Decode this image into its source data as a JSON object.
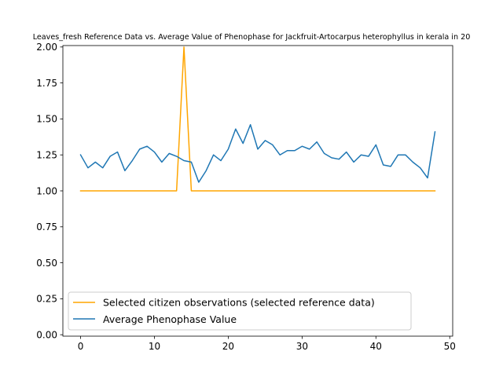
{
  "chart_data": {
    "type": "line",
    "title": "Leaves_fresh Reference Data vs. Average Value of Phenophase for Jackfruit-Artocarpus heterophyllus in kerala in 20",
    "xlabel": "",
    "ylabel": "",
    "xlim": [
      -2.4,
      50.4
    ],
    "ylim": [
      -0.01,
      2.01
    ],
    "xticks": [
      0,
      10,
      20,
      30,
      40,
      50
    ],
    "yticks": [
      0.0,
      0.25,
      0.5,
      0.75,
      1.0,
      1.25,
      1.5,
      1.75,
      2.0
    ],
    "grid": false,
    "legend_position": "lower-left",
    "series": [
      {
        "name": "Selected citizen observations (selected reference data)",
        "color": "#ffa500",
        "x": [
          0,
          1,
          2,
          3,
          4,
          5,
          6,
          7,
          8,
          9,
          10,
          11,
          12,
          13,
          14,
          15,
          16,
          17,
          18,
          19,
          20,
          21,
          22,
          23,
          24,
          25,
          26,
          27,
          28,
          29,
          30,
          31,
          32,
          33,
          34,
          35,
          36,
          37,
          38,
          39,
          40,
          41,
          42,
          43,
          44,
          45,
          46,
          47,
          48
        ],
        "values": [
          1,
          1,
          1,
          1,
          1,
          1,
          1,
          1,
          1,
          1,
          1,
          1,
          1,
          1,
          2,
          1,
          1,
          1,
          1,
          1,
          1,
          1,
          1,
          1,
          1,
          1,
          1,
          1,
          1,
          1,
          1,
          1,
          1,
          1,
          1,
          1,
          1,
          1,
          1,
          1,
          1,
          1,
          1,
          1,
          1,
          1,
          1,
          1,
          1
        ]
      },
      {
        "name": "Average Phenophase Value",
        "color": "#1f77b4",
        "x": [
          0,
          1,
          2,
          3,
          4,
          5,
          6,
          7,
          8,
          9,
          10,
          11,
          12,
          13,
          14,
          15,
          16,
          17,
          18,
          19,
          20,
          21,
          22,
          23,
          24,
          25,
          26,
          27,
          28,
          29,
          30,
          31,
          32,
          33,
          34,
          35,
          36,
          37,
          38,
          39,
          40,
          41,
          42,
          43,
          44,
          45,
          46,
          47,
          48
        ],
        "values": [
          1.25,
          1.16,
          1.2,
          1.16,
          1.24,
          1.27,
          1.14,
          1.21,
          1.29,
          1.31,
          1.27,
          1.2,
          1.26,
          1.24,
          1.21,
          1.2,
          1.06,
          1.14,
          1.25,
          1.21,
          1.29,
          1.43,
          1.33,
          1.46,
          1.29,
          1.35,
          1.32,
          1.25,
          1.28,
          1.28,
          1.31,
          1.29,
          1.34,
          1.26,
          1.23,
          1.22,
          1.27,
          1.2,
          1.25,
          1.24,
          1.32,
          1.18,
          1.17,
          1.25,
          1.25,
          1.2,
          1.16,
          1.09,
          1.41
        ]
      }
    ]
  }
}
